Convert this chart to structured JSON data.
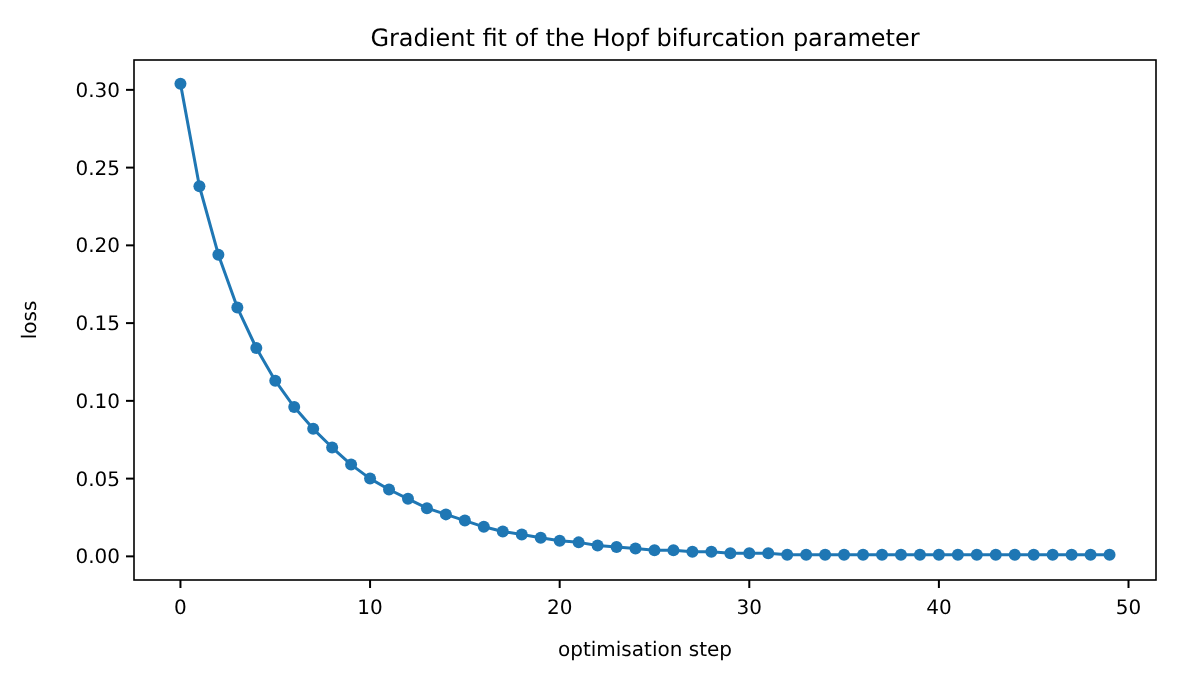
{
  "chart_data": {
    "type": "line",
    "title": "Gradient fit of the Hopf bifurcation parameter",
    "xlabel": "optimisation step",
    "ylabel": "loss",
    "x": [
      0,
      1,
      2,
      3,
      4,
      5,
      6,
      7,
      8,
      9,
      10,
      11,
      12,
      13,
      14,
      15,
      16,
      17,
      18,
      19,
      20,
      21,
      22,
      23,
      24,
      25,
      26,
      27,
      28,
      29,
      30,
      31,
      32,
      33,
      34,
      35,
      36,
      37,
      38,
      39,
      40,
      41,
      42,
      43,
      44,
      45,
      46,
      47,
      48,
      49
    ],
    "series": [
      {
        "color": "#1f77b4",
        "values": [
          0.304,
          0.238,
          0.194,
          0.16,
          0.134,
          0.113,
          0.096,
          0.082,
          0.07,
          0.059,
          0.05,
          0.043,
          0.037,
          0.031,
          0.027,
          0.023,
          0.019,
          0.016,
          0.014,
          0.012,
          0.01,
          0.009,
          0.007,
          0.006,
          0.005,
          0.004,
          0.004,
          0.003,
          0.003,
          0.002,
          0.002,
          0.002,
          0.001,
          0.001,
          0.001,
          0.001,
          0.001,
          0.001,
          0.001,
          0.001,
          0.001,
          0.001,
          0.001,
          0.001,
          0.001,
          0.001,
          0.001,
          0.001,
          0.001,
          0.001
        ]
      }
    ],
    "xlim": [
      -2.45,
      51.45
    ],
    "ylim": [
      -0.0152,
      0.3192
    ],
    "xticks": [
      0,
      10,
      20,
      30,
      40,
      50
    ],
    "yticks": [
      {
        "value": 0,
        "label": "0.00"
      },
      {
        "value": 0.05,
        "label": "0.05"
      },
      {
        "value": 0.1,
        "label": "0.10"
      },
      {
        "value": 0.15,
        "label": "0.15"
      },
      {
        "value": 0.2,
        "label": "0.20"
      },
      {
        "value": 0.25,
        "label": "0.25"
      },
      {
        "value": 0.3,
        "label": "0.30"
      }
    ],
    "marker": "circle",
    "line_style": "solid"
  }
}
